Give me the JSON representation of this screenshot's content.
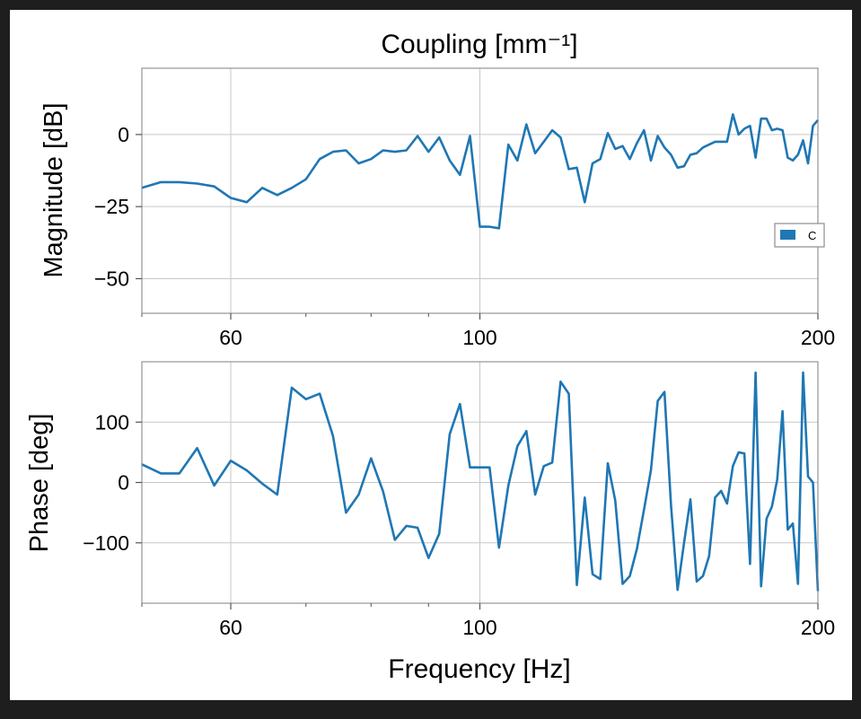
{
  "chart_data": [
    {
      "type": "line",
      "title": "Coupling [mm⁻¹]",
      "xlabel": "",
      "ylabel": "Magnitude [dB]",
      "xscale": "log",
      "xlim": [
        50,
        200
      ],
      "ylim": [
        -62,
        23
      ],
      "xticks": [
        60,
        100,
        200
      ],
      "xtick_labels": [
        "60",
        "100",
        "200"
      ],
      "yticks": [
        0,
        -25,
        -50
      ],
      "ytick_labels": [
        "0",
        "−25",
        "−50"
      ],
      "grid": true,
      "legend": "center-right",
      "series": [
        {
          "name": "C",
          "color": "#1f77b4",
          "x": [
            50,
            52,
            54,
            56,
            58,
            60,
            62,
            64,
            66,
            68,
            70,
            72,
            74,
            76,
            78,
            80,
            82,
            84,
            86,
            88,
            90,
            92,
            94,
            96,
            98,
            100,
            102,
            104,
            106,
            108,
            110,
            112,
            114,
            116,
            118,
            120,
            122,
            124,
            126,
            128,
            130,
            132,
            134,
            136,
            138,
            140,
            142,
            144,
            146,
            148,
            150,
            152,
            154,
            156,
            158,
            160,
            162,
            164,
            166,
            168,
            170,
            172,
            174,
            176,
            178,
            180,
            182,
            184,
            186,
            188,
            190,
            192,
            194,
            196,
            198,
            200
          ],
          "y": [
            -18.5,
            -16.5,
            -16.5,
            -17,
            -18,
            -22,
            -23.5,
            -18.5,
            -21,
            -18.5,
            -15.5,
            -8.5,
            -6,
            -5.5,
            -10,
            -8.5,
            -5.5,
            -6,
            -5.5,
            -0.5,
            -6,
            -1,
            -9,
            -14,
            -0.5,
            -32,
            -32,
            -32.5,
            -3.5,
            -9,
            3.5,
            -6.5,
            -2.5,
            1.5,
            -1,
            -12,
            -11.5,
            -23.5,
            -10,
            -8.5,
            0.5,
            -5,
            -4,
            -8.5,
            -3,
            1.5,
            -9,
            -0.5,
            -4.5,
            -7,
            -11.5,
            -11,
            -7,
            -6.5,
            -4.5,
            -3.5,
            -2.5,
            -2.5,
            -2.5,
            7,
            0,
            2,
            3,
            -8,
            5.5,
            5.5,
            1.5,
            2,
            1.5,
            -8,
            -9,
            -7,
            -2,
            -10,
            3,
            5
          ]
        }
      ]
    },
    {
      "type": "line",
      "title": "",
      "xlabel": "Frequency [Hz]",
      "ylabel": "Phase [deg]",
      "xscale": "log",
      "xlim": [
        50,
        200
      ],
      "ylim": [
        -200,
        200
      ],
      "xticks": [
        60,
        100,
        200
      ],
      "xtick_labels": [
        "60",
        "100",
        "200"
      ],
      "yticks": [
        100,
        0,
        -100
      ],
      "ytick_labels": [
        "100",
        "0",
        "−100"
      ],
      "grid": true,
      "series": [
        {
          "color": "#1f77b4",
          "x": [
            50,
            52,
            54,
            56,
            58,
            60,
            62,
            64,
            66,
            68,
            70,
            72,
            74,
            76,
            78,
            80,
            82,
            84,
            86,
            88,
            90,
            92,
            94,
            96,
            98,
            100,
            102,
            104,
            106,
            108,
            110,
            112,
            114,
            116,
            118,
            120,
            122,
            124,
            126,
            128,
            130,
            132,
            134,
            136,
            138,
            140,
            142,
            144,
            146,
            148,
            150,
            152,
            154,
            156,
            158,
            160,
            162,
            164,
            166,
            168,
            170,
            172,
            174,
            176,
            178,
            180,
            182,
            184,
            186,
            188,
            190,
            192,
            194,
            196,
            198,
            200
          ],
          "y": [
            30,
            15,
            15,
            57,
            -5,
            36,
            20,
            -2,
            -20,
            157,
            138,
            147,
            77,
            -50,
            -20,
            40,
            -15,
            -95,
            -72,
            -75,
            -125,
            -85,
            80,
            130,
            25,
            25,
            25,
            -108,
            -5,
            60,
            85,
            -20,
            27,
            33,
            167,
            147,
            -170,
            -25,
            -152,
            -160,
            32,
            -30,
            -168,
            -155,
            -110,
            -45,
            20,
            135,
            150,
            -38,
            -178,
            -100,
            -28,
            -164,
            -155,
            -122,
            -25,
            -14,
            -35,
            27,
            50,
            48,
            -135,
            182,
            -172,
            -60,
            -40,
            5,
            118,
            -78,
            -68,
            -168,
            182,
            10,
            0,
            -180
          ]
        }
      ]
    }
  ]
}
